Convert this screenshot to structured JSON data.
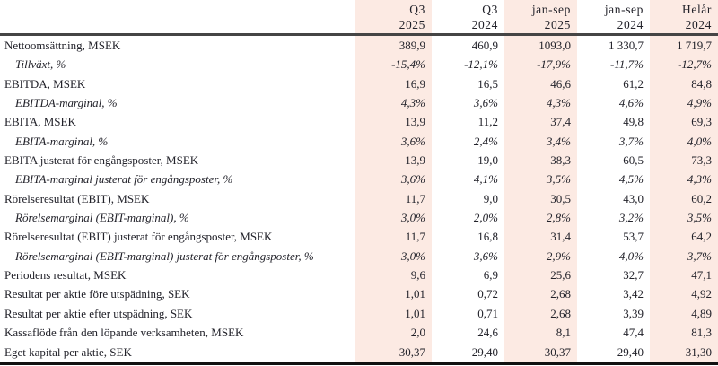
{
  "table": {
    "columns": [
      {
        "period": "Q3",
        "year": "2025",
        "shaded": true
      },
      {
        "period": "Q3",
        "year": "2024",
        "shaded": false
      },
      {
        "period": "jan-sep",
        "year": "2025",
        "shaded": true
      },
      {
        "period": "jan-sep",
        "year": "2024",
        "shaded": false
      },
      {
        "period": "Helår",
        "year": "2024",
        "shaded": true
      }
    ],
    "rows": [
      {
        "label": "Nettoomsättning, MSEK",
        "italic": false,
        "values": [
          "389,9",
          "460,9",
          "1093,0",
          "1 330,7",
          "1 719,7"
        ]
      },
      {
        "label": "Tillväxt, %",
        "italic": true,
        "values": [
          "-15,4%",
          "-12,1%",
          "-17,9%",
          "-11,7%",
          "-12,7%"
        ]
      },
      {
        "label": "EBITDA, MSEK",
        "italic": false,
        "values": [
          "16,9",
          "16,5",
          "46,6",
          "61,2",
          "84,8"
        ]
      },
      {
        "label": "EBITDA-marginal, %",
        "italic": true,
        "values": [
          "4,3%",
          "3,6%",
          "4,3%",
          "4,6%",
          "4,9%"
        ]
      },
      {
        "label": "EBITA, MSEK",
        "italic": false,
        "values": [
          "13,9",
          "11,2",
          "37,4",
          "49,8",
          "69,3"
        ]
      },
      {
        "label": "EBITA-marginal, %",
        "italic": true,
        "values": [
          "3,6%",
          "2,4%",
          "3,4%",
          "3,7%",
          "4,0%"
        ]
      },
      {
        "label": "EBITA justerat för engångsposter, MSEK",
        "italic": false,
        "values": [
          "13,9",
          "19,0",
          "38,3",
          "60,5",
          "73,3"
        ]
      },
      {
        "label": "EBITA-marginal justerat för engångsposter, %",
        "italic": true,
        "values": [
          "3,6%",
          "4,1%",
          "3,5%",
          "4,5%",
          "4,3%"
        ]
      },
      {
        "label": "Rörelseresultat (EBIT), MSEK",
        "italic": false,
        "values": [
          "11,7",
          "9,0",
          "30,5",
          "43,0",
          "60,2"
        ]
      },
      {
        "label": "Rörelsemarginal (EBIT-marginal), %",
        "italic": true,
        "values": [
          "3,0%",
          "2,0%",
          "2,8%",
          "3,2%",
          "3,5%"
        ]
      },
      {
        "label": "Rörelseresultat (EBIT) justerat för engångsposter, MSEK",
        "italic": false,
        "values": [
          "11,7",
          "16,8",
          "31,4",
          "53,7",
          "64,2"
        ]
      },
      {
        "label": "Rörelsemarginal (EBIT-marginal) justerat för engångsposter, %",
        "italic": true,
        "values": [
          "3,0%",
          "3,6%",
          "2,9%",
          "4,0%",
          "3,7%"
        ]
      },
      {
        "label": "Periodens resultat, MSEK",
        "italic": false,
        "values": [
          "9,6",
          "6,9",
          "25,6",
          "32,7",
          "47,1"
        ]
      },
      {
        "label": "Resultat per aktie före utspädning, SEK",
        "italic": false,
        "values": [
          "1,01",
          "0,72",
          "2,68",
          "3,42",
          "4,92"
        ]
      },
      {
        "label": "Resultat per aktie efter utspädning, SEK",
        "italic": false,
        "values": [
          "1,01",
          "0,71",
          "2,68",
          "3,39",
          "4,89"
        ]
      },
      {
        "label": "Kassaflöde från den löpande verksamheten, MSEK",
        "italic": false,
        "values": [
          "2,0",
          "24,6",
          "8,1",
          "47,4",
          "81,3"
        ]
      },
      {
        "label": "Eget kapital per aktie, SEK",
        "italic": false,
        "values": [
          "30,37",
          "29,40",
          "30,37",
          "29,40",
          "31,30"
        ]
      }
    ],
    "colors": {
      "shaded_bg": "#fceae3",
      "header_rule": "#454545",
      "bottom_rule": "#111111",
      "text": "#22222a"
    }
  }
}
